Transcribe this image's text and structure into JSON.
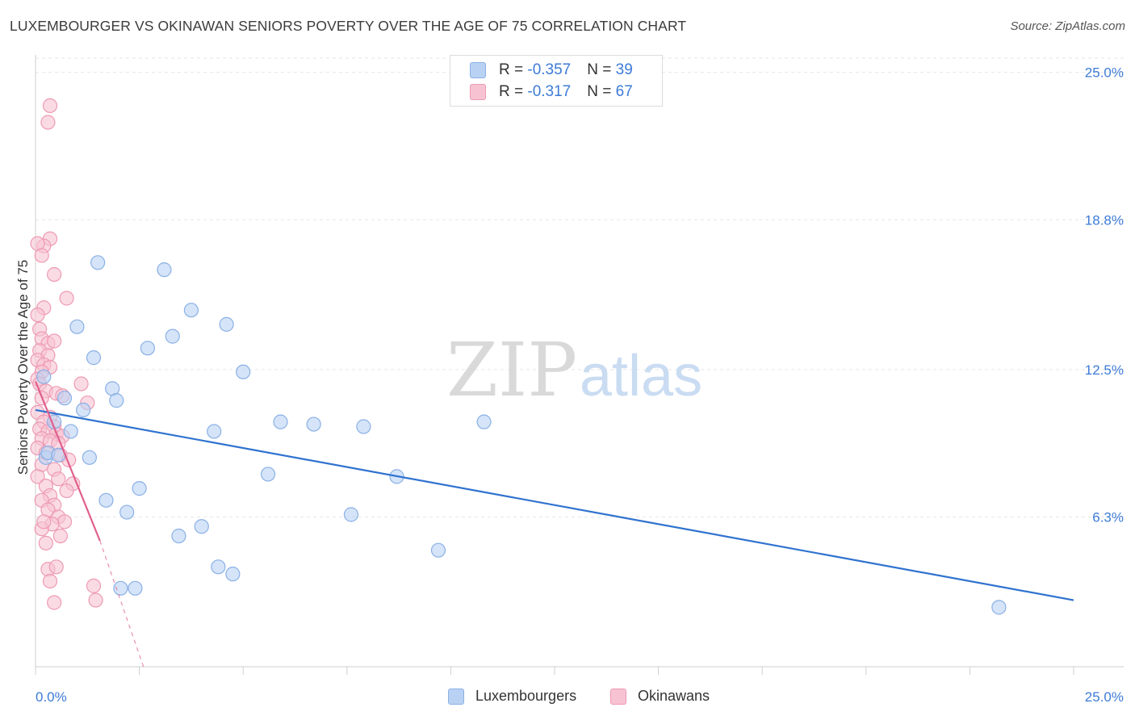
{
  "title": "LUXEMBOURGER VS OKINAWAN SENIORS POVERTY OVER THE AGE OF 75 CORRELATION CHART",
  "source": "Source: ZipAtlas.com",
  "watermark": {
    "zip": "ZIP",
    "atlas": "atlas"
  },
  "colors": {
    "blue_fill": "#b9d2f3",
    "blue_stroke": "#8ab0e6",
    "blue_line": "#2f72cf",
    "pink_fill": "#f7c3d2",
    "pink_stroke": "#ee9ab4",
    "pink_line": "#e0608d",
    "accent_text": "#3d7bd6"
  },
  "legend": {
    "rows": [
      {
        "r_label": "R = ",
        "r_value": "-0.357",
        "n_label": "N = ",
        "n_value": "39",
        "color": "#b9d2f3",
        "border": "#8ab0e6"
      },
      {
        "r_label": "R = ",
        "r_value": "-0.317",
        "n_label": "N = ",
        "n_value": "67",
        "color": "#f7c3d2",
        "border": "#ee9ab4"
      }
    ]
  },
  "bottom_legend": {
    "items": [
      {
        "label": "Luxembourgers",
        "color": "#b9d2f3",
        "border": "#8ab0e6"
      },
      {
        "label": "Okinawans",
        "color": "#f7c3d2",
        "border": "#ee9ab4"
      }
    ]
  },
  "chart_data": {
    "type": "scatter",
    "xlabel": "",
    "ylabel": "Seniors Poverty Over the Age of 75",
    "xlim": [
      0,
      25
    ],
    "ylim": [
      0,
      25.6
    ],
    "x_tick_labels": [
      "0.0%",
      "25.0%"
    ],
    "y_ticks": [
      6.3,
      12.5,
      18.8,
      25.0
    ],
    "y_tick_labels": [
      "6.3%",
      "12.5%",
      "18.8%",
      "25.0%"
    ],
    "grid": true,
    "series": [
      {
        "name": "Luxembourgers",
        "r": -0.357,
        "n": 39,
        "points": [
          [
            0.2,
            12.2
          ],
          [
            0.25,
            8.8
          ],
          [
            0.3,
            9.0
          ],
          [
            0.45,
            10.3
          ],
          [
            0.55,
            8.9
          ],
          [
            0.7,
            11.3
          ],
          [
            0.85,
            9.9
          ],
          [
            1.0,
            14.3
          ],
          [
            1.15,
            10.8
          ],
          [
            1.3,
            8.8
          ],
          [
            1.4,
            13.0
          ],
          [
            1.5,
            17.0
          ],
          [
            1.7,
            7.0
          ],
          [
            1.85,
            11.7
          ],
          [
            1.95,
            11.2
          ],
          [
            2.05,
            3.3
          ],
          [
            2.2,
            6.5
          ],
          [
            2.4,
            3.3
          ],
          [
            2.5,
            7.5
          ],
          [
            2.7,
            13.4
          ],
          [
            3.1,
            16.7
          ],
          [
            3.3,
            13.9
          ],
          [
            3.45,
            5.5
          ],
          [
            3.75,
            15.0
          ],
          [
            4.0,
            5.9
          ],
          [
            4.3,
            9.9
          ],
          [
            4.4,
            4.2
          ],
          [
            4.6,
            14.4
          ],
          [
            4.75,
            3.9
          ],
          [
            5.0,
            12.4
          ],
          [
            5.6,
            8.1
          ],
          [
            5.9,
            10.3
          ],
          [
            6.7,
            10.2
          ],
          [
            7.6,
            6.4
          ],
          [
            7.9,
            10.1
          ],
          [
            8.7,
            8.0
          ],
          [
            9.7,
            4.9
          ],
          [
            10.8,
            10.3
          ],
          [
            23.2,
            2.5
          ]
        ],
        "trend": {
          "x": [
            0,
            25
          ],
          "y": [
            10.8,
            2.8
          ]
        }
      },
      {
        "name": "Okinawans",
        "r": -0.317,
        "n": 67,
        "points": [
          [
            0.35,
            23.6
          ],
          [
            0.3,
            22.9
          ],
          [
            0.35,
            18.0
          ],
          [
            0.2,
            17.7
          ],
          [
            0.05,
            17.8
          ],
          [
            0.15,
            17.3
          ],
          [
            0.45,
            16.5
          ],
          [
            0.75,
            15.5
          ],
          [
            0.2,
            15.1
          ],
          [
            0.05,
            14.8
          ],
          [
            0.1,
            14.2
          ],
          [
            0.15,
            13.8
          ],
          [
            0.3,
            13.6
          ],
          [
            0.45,
            13.7
          ],
          [
            0.1,
            13.3
          ],
          [
            0.3,
            13.1
          ],
          [
            0.05,
            12.9
          ],
          [
            0.2,
            12.7
          ],
          [
            0.35,
            12.6
          ],
          [
            0.15,
            12.4
          ],
          [
            0.05,
            12.1
          ],
          [
            0.1,
            11.9
          ],
          [
            0.25,
            11.6
          ],
          [
            0.5,
            11.5
          ],
          [
            0.65,
            11.4
          ],
          [
            1.1,
            11.9
          ],
          [
            1.25,
            11.1
          ],
          [
            0.15,
            11.3
          ],
          [
            0.05,
            10.7
          ],
          [
            0.35,
            10.5
          ],
          [
            0.2,
            10.3
          ],
          [
            0.45,
            10.1
          ],
          [
            0.1,
            10.0
          ],
          [
            0.3,
            9.9
          ],
          [
            0.5,
            9.8
          ],
          [
            0.65,
            9.7
          ],
          [
            0.15,
            9.6
          ],
          [
            0.35,
            9.5
          ],
          [
            0.55,
            9.4
          ],
          [
            0.05,
            9.2
          ],
          [
            0.25,
            9.0
          ],
          [
            0.6,
            8.9
          ],
          [
            0.8,
            8.7
          ],
          [
            0.15,
            8.5
          ],
          [
            0.45,
            8.3
          ],
          [
            0.05,
            8.0
          ],
          [
            0.55,
            7.9
          ],
          [
            0.9,
            7.7
          ],
          [
            0.25,
            7.6
          ],
          [
            0.75,
            7.4
          ],
          [
            0.35,
            7.2
          ],
          [
            0.15,
            7.0
          ],
          [
            0.45,
            6.8
          ],
          [
            0.3,
            6.6
          ],
          [
            0.55,
            6.3
          ],
          [
            0.7,
            6.1
          ],
          [
            0.4,
            6.0
          ],
          [
            0.15,
            5.8
          ],
          [
            0.6,
            5.5
          ],
          [
            0.25,
            5.2
          ],
          [
            0.3,
            4.1
          ],
          [
            0.5,
            4.2
          ],
          [
            0.35,
            3.6
          ],
          [
            1.4,
            3.4
          ],
          [
            0.45,
            2.7
          ],
          [
            1.45,
            2.8
          ],
          [
            0.2,
            6.1
          ]
        ],
        "trend": {
          "x": [
            0,
            1.55
          ],
          "y": [
            12.0,
            5.3
          ]
        },
        "trend_dashed": {
          "x": [
            1.55,
            2.6
          ],
          "y": [
            5.3,
            0.0
          ]
        }
      }
    ]
  }
}
